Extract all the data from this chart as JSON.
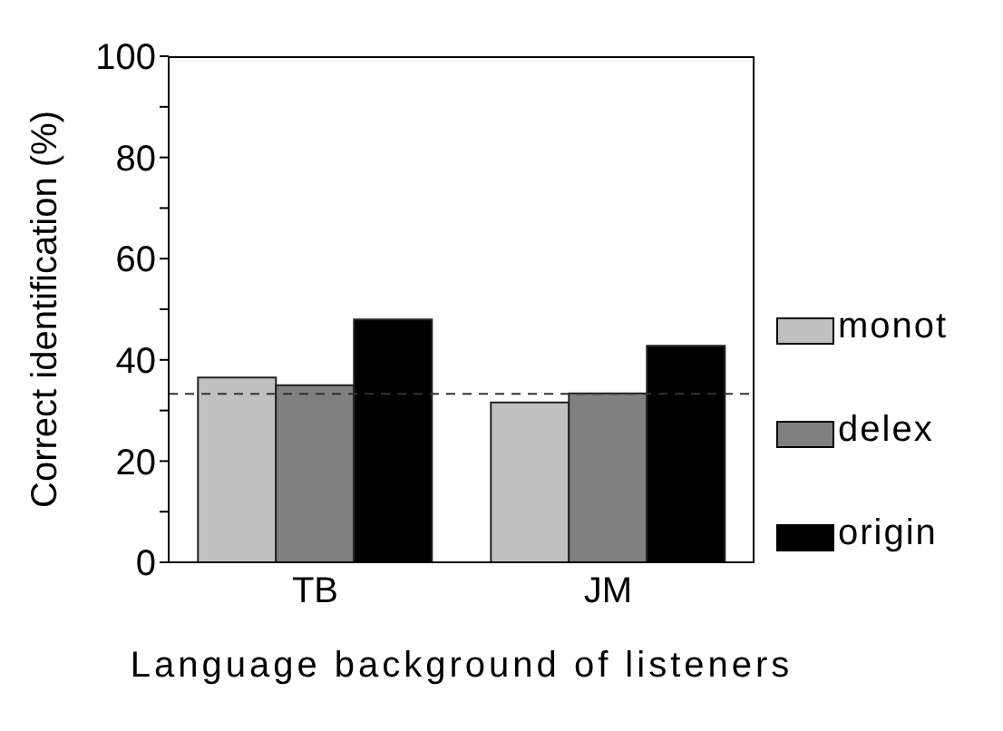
{
  "chart_data": {
    "type": "bar",
    "xlabel": "Language background of listeners",
    "ylabel": "Correct identification (%)",
    "categories": [
      "TB",
      "JM"
    ],
    "series": [
      {
        "name": "monot",
        "color": "#c0c0c0",
        "values": [
          36.5,
          31.6
        ]
      },
      {
        "name": "delex",
        "color": "#808080",
        "values": [
          35.0,
          33.4
        ]
      },
      {
        "name": "origin",
        "color": "#000000",
        "values": [
          48.0,
          42.8
        ]
      }
    ],
    "ylim": [
      0,
      100
    ],
    "yticks": [
      0,
      {
        "value": 10,
        "label": null
      },
      20,
      {
        "value": 30,
        "label": null
      },
      40,
      {
        "value": 50,
        "label": null
      },
      60,
      {
        "value": 70,
        "label": null
      },
      80,
      {
        "value": 90,
        "label": null
      },
      100
    ],
    "ref_lines": [
      {
        "axis": "y",
        "value": 33.3,
        "label": null,
        "line_style": "dashed"
      }
    ],
    "legend": "right",
    "grid": false
  }
}
